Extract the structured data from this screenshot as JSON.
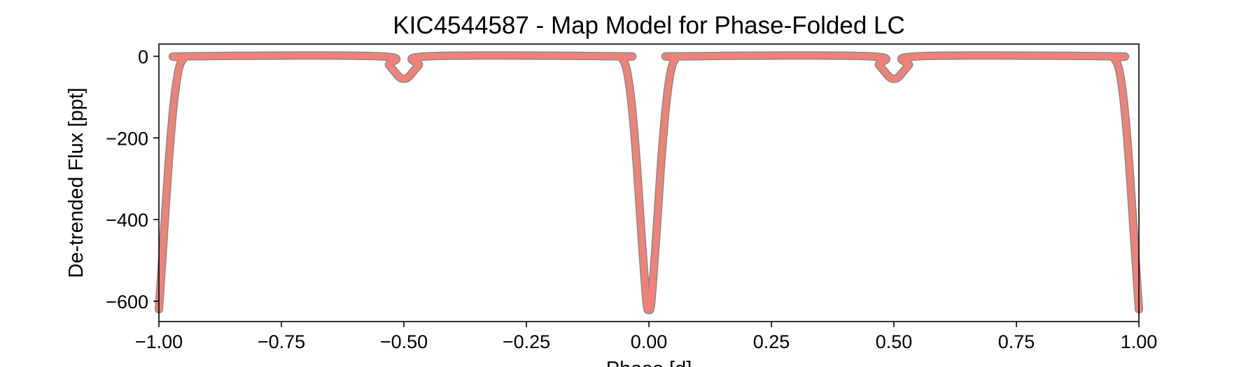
{
  "chart_data": {
    "type": "scatter",
    "title": "KIC4544587 - Map Model for Phase-Folded LC",
    "xlabel": "Phase [d]",
    "ylabel": "De-trended Flux [ppt]",
    "xlim": [
      -1.0,
      1.0
    ],
    "ylim": [
      -650,
      30
    ],
    "xticks": [
      -1.0,
      -0.75,
      -0.5,
      -0.25,
      0.0,
      0.25,
      0.5,
      0.75,
      1.0
    ],
    "xtick_labels": [
      "−1.00",
      "−0.75",
      "−0.50",
      "−0.25",
      "0.00",
      "0.25",
      "0.50",
      "0.75",
      "1.00"
    ],
    "yticks": [
      0,
      -200,
      -400,
      -600
    ],
    "ytick_labels": [
      "0",
      "−200",
      "−400",
      "−600"
    ],
    "grid": false,
    "colors": {
      "model": "#f08178",
      "model_edge": "#8a8a8a",
      "axes": "#000000"
    },
    "series": [
      {
        "x": [
          -1.0,
          -0.99,
          -0.98,
          -0.97,
          -0.96,
          -0.95,
          -0.94,
          -0.55,
          -0.53,
          -0.51,
          -0.5,
          -0.49,
          -0.47,
          -0.45,
          -0.065,
          -0.055,
          -0.045,
          -0.035,
          -0.025,
          -0.015,
          -0.005,
          0.0,
          0.005,
          0.015,
          0.025,
          0.035,
          0.045,
          0.055,
          0.065,
          0.45,
          0.47,
          0.49,
          0.5,
          0.51,
          0.53,
          0.55,
          0.94,
          0.95,
          0.96,
          0.97,
          0.98,
          0.99,
          1.0
        ],
        "y": [
          -620,
          -440,
          -260,
          -120,
          -35,
          -6,
          0,
          0,
          -22,
          -50,
          -55,
          -50,
          -22,
          0,
          0,
          -5,
          -35,
          -120,
          -260,
          -440,
          -600,
          -620,
          -600,
          -440,
          -260,
          -120,
          -35,
          -5,
          0,
          0,
          -22,
          -50,
          -55,
          -50,
          -22,
          0,
          0,
          -6,
          -35,
          -120,
          -260,
          -440,
          -620
        ]
      }
    ]
  }
}
